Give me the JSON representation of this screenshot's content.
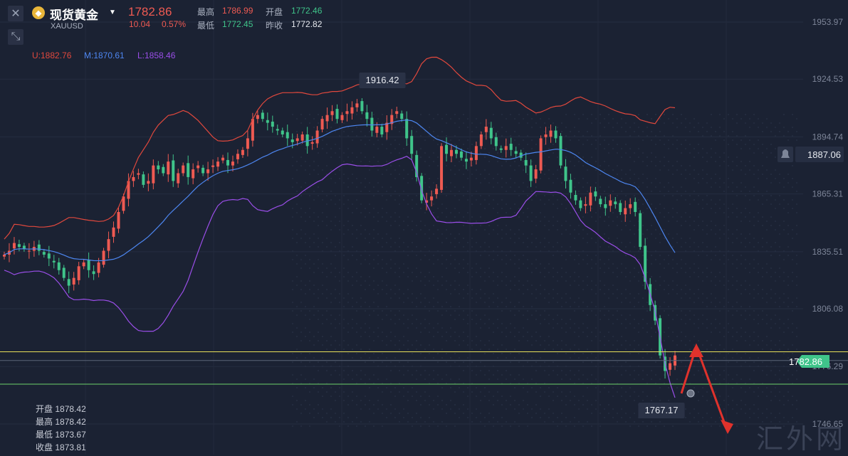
{
  "header": {
    "title": "现货黄金",
    "symbol": "XAUUSD",
    "price": "1782.86",
    "change": "10.04",
    "change_pct": "0.57%",
    "high_label": "最高",
    "high_value": "1786.99",
    "open_label": "开盘",
    "open_value": "1772.46",
    "low_label": "最低",
    "low_value": "1772.45",
    "prev_close_label": "昨收",
    "prev_close_value": "1772.82"
  },
  "bollinger": {
    "upper_label": "U:1882.76",
    "middle_label": "M:1870.61",
    "lower_label": "L:1858.46"
  },
  "ohlc_tooltip": [
    {
      "label": "开盘",
      "value": "1878.42"
    },
    {
      "label": "最高",
      "value": "1878.42"
    },
    {
      "label": "最低",
      "value": "1873.67"
    },
    {
      "label": "收盘",
      "value": "1873.81"
    }
  ],
  "watermark": "汇外网",
  "colors": {
    "up": "#ee5a52",
    "down": "#3fc48a",
    "upper": "#e0483d",
    "middle": "#4d86f0",
    "lower": "#9a4ee8",
    "yellow_line": "#e8e05a",
    "green_line": "#6ed36a"
  },
  "chart_data": {
    "type": "candlestick",
    "instrument": "XAUUSD",
    "ylim": [
      1745.3,
      1965.2
    ],
    "y_ticks": [
      "1953.97",
      "1924.53",
      "1894.74",
      "1865.31",
      "1835.51",
      "1806.08",
      "1776.29",
      "1746.65"
    ],
    "annotations": {
      "high_label": "1916.42",
      "low_label": "1767.17",
      "current_price": "1782.86",
      "alert_price": "1887.06"
    },
    "horizontal_lines": [
      {
        "value": 1783.9,
        "color": "yellow"
      },
      {
        "value": 1779.4,
        "color": "grey"
      },
      {
        "value": 1767.2,
        "color": "green"
      }
    ],
    "close_series": [
      1834,
      1836,
      1840,
      1838,
      1837,
      1836,
      1838,
      1836,
      1834,
      1832,
      1830,
      1826,
      1822,
      1818,
      1822,
      1828,
      1830,
      1826,
      1824,
      1830,
      1836,
      1842,
      1848,
      1856,
      1864,
      1872,
      1874,
      1876,
      1870,
      1872,
      1880,
      1878,
      1876,
      1882,
      1872,
      1876,
      1880,
      1874,
      1878,
      1880,
      1876,
      1878,
      1880,
      1882,
      1884,
      1880,
      1882,
      1886,
      1888,
      1894,
      1904,
      1906,
      1904,
      1902,
      1900,
      1898,
      1896,
      1894,
      1892,
      1894,
      1896,
      1890,
      1892,
      1898,
      1904,
      1906,
      1908,
      1904,
      1906,
      1908,
      1910,
      1912,
      1908,
      1904,
      1898,
      1900,
      1896,
      1902,
      1906,
      1908,
      1904,
      1894,
      1886,
      1874,
      1862,
      1862,
      1864,
      1868,
      1890,
      1886,
      1888,
      1886,
      1884,
      1882,
      1884,
      1890,
      1896,
      1900,
      1894,
      1890,
      1888,
      1890,
      1888,
      1886,
      1884,
      1880,
      1872,
      1878,
      1894,
      1896,
      1898,
      1894,
      1880,
      1872,
      1866,
      1862,
      1858,
      1860,
      1866,
      1864,
      1860,
      1858,
      1862,
      1860,
      1856,
      1858,
      1860,
      1856,
      1838,
      1820,
      1808,
      1800,
      1782,
      1774,
      1778,
      1782
    ]
  }
}
